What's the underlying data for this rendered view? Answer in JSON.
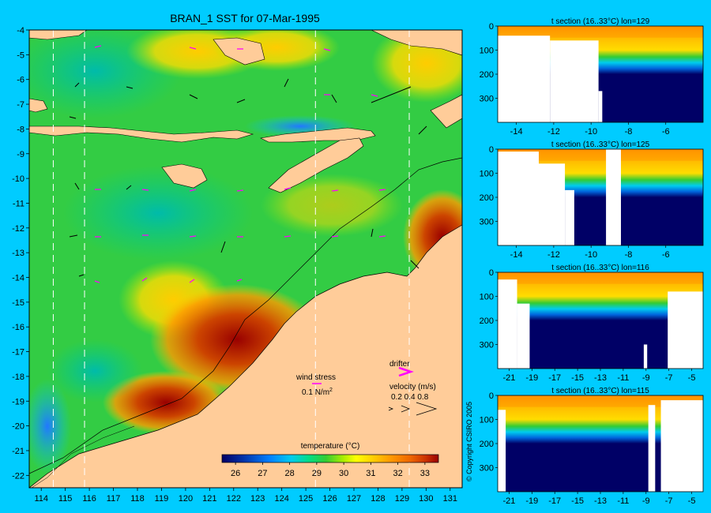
{
  "colors": {
    "background": "#00ccff",
    "land": "#ffcc99",
    "colormap": [
      "#000066",
      "#0033aa",
      "#0080ff",
      "#00ccee",
      "#00dd88",
      "#33cc33",
      "#aaee00",
      "#ffff00",
      "#ffcc00",
      "#ff9900",
      "#ee6600",
      "#cc3300",
      "#990000"
    ],
    "vector_color": "#ff00ff"
  },
  "chart_data": [
    {
      "type": "heatmap",
      "title": "BRAN_1 SST for 07-Mar-1995",
      "xlim": [
        113.5,
        131.5
      ],
      "ylim": [
        -22.5,
        -4
      ],
      "x_ticks": [
        "114",
        "115",
        "116",
        "117",
        "118",
        "119",
        "120",
        "121",
        "122",
        "123",
        "124",
        "125",
        "126",
        "127",
        "128",
        "129",
        "130",
        "131"
      ],
      "y_ticks": [
        "-4",
        "-5",
        "-6",
        "-7",
        "-8",
        "-9",
        "-10",
        "-11",
        "-12",
        "-13",
        "-14",
        "-15",
        "-16",
        "-17",
        "-18",
        "-19",
        "-20",
        "-21",
        "-22"
      ],
      "section_lines_lon": [
        114.5,
        115.8,
        125.4,
        129.3
      ],
      "colorbar": {
        "label": "temperature (°C)",
        "range": [
          25.5,
          33.5
        ],
        "ticks": [
          "26",
          "27",
          "28",
          "29",
          "30",
          "31",
          "32",
          "33"
        ],
        "ticks_values": [
          26,
          27,
          28,
          29,
          30,
          31,
          32,
          33
        ]
      },
      "legend": {
        "wind_label": "wind stress",
        "wind_value": "0.1",
        "wind_unit": "N/m",
        "wind_exp": "2",
        "drifter_label": "drifter",
        "velocity_label": "velocity (m/s)",
        "velocity_values": "0.2 0.4 0.8"
      },
      "copyright": "© Copyright CSIRO 2005"
    },
    {
      "type": "heatmap",
      "title": "t section (16..33°C) lon=129",
      "x_ticks": [
        -14,
        -12,
        -10,
        -8,
        -6
      ],
      "xlim": [
        -15,
        -4
      ],
      "y_ticks": [
        0,
        100,
        200,
        300
      ],
      "ylim": [
        400,
        0
      ]
    },
    {
      "type": "heatmap",
      "title": "t section (16..33°C) lon=125",
      "x_ticks": [
        -14,
        -12,
        -10,
        -8,
        -6
      ],
      "xlim": [
        -15,
        -4
      ],
      "y_ticks": [
        0,
        100,
        200,
        300
      ],
      "ylim": [
        400,
        0
      ]
    },
    {
      "type": "heatmap",
      "title": "t section (16..33°C) lon=116",
      "x_ticks": [
        -21,
        -19,
        -17,
        -15,
        -13,
        -11,
        -9,
        -7,
        -5
      ],
      "xlim": [
        -22,
        -4
      ],
      "y_ticks": [
        0,
        100,
        200,
        300
      ],
      "ylim": [
        400,
        0
      ]
    },
    {
      "type": "heatmap",
      "title": "t section (16..33°C) lon=115",
      "x_ticks": [
        -21,
        -19,
        -17,
        -15,
        -13,
        -11,
        -9,
        -7,
        -5
      ],
      "xlim": [
        -22,
        -4
      ],
      "y_ticks": [
        0,
        100,
        200,
        300
      ],
      "ylim": [
        400,
        0
      ]
    }
  ]
}
